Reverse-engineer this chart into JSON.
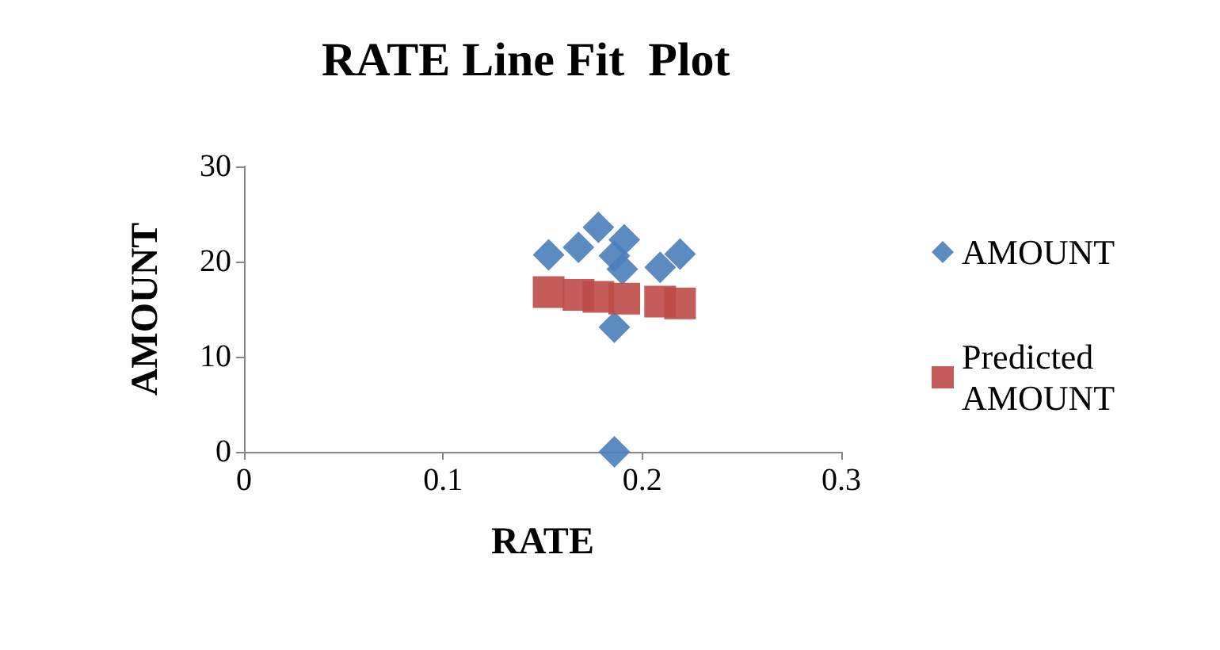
{
  "chart_data": {
    "type": "scatter",
    "title": "RATE Line Fit  Plot",
    "xlabel": "RATE",
    "ylabel": "AMOUNT",
    "xlim": [
      0,
      0.3
    ],
    "xticks": [
      0,
      0.1,
      0.2,
      0.3
    ],
    "ylim": [
      0,
      30
    ],
    "yticks": [
      0,
      10,
      20,
      30
    ],
    "grid": false,
    "legend": "right",
    "series": [
      {
        "name": "AMOUNT",
        "color": "#4a7ebb",
        "marker": "diamond",
        "x": [
          0.153,
          0.168,
          0.178,
          0.191,
          0.186,
          0.19,
          0.209,
          0.219,
          0.186,
          0.186
        ],
        "values": [
          20.7,
          21.5,
          23.6,
          22.3,
          20.6,
          19.2,
          19.4,
          20.8,
          13.1,
          0
        ]
      },
      {
        "name": "Predicted AMOUNT",
        "color": "#be4b48",
        "marker": "square",
        "x": [
          0.153,
          0.168,
          0.178,
          0.191,
          0.209,
          0.219
        ],
        "values": [
          16.8,
          16.5,
          16.3,
          16.1,
          15.8,
          15.6
        ]
      }
    ]
  }
}
